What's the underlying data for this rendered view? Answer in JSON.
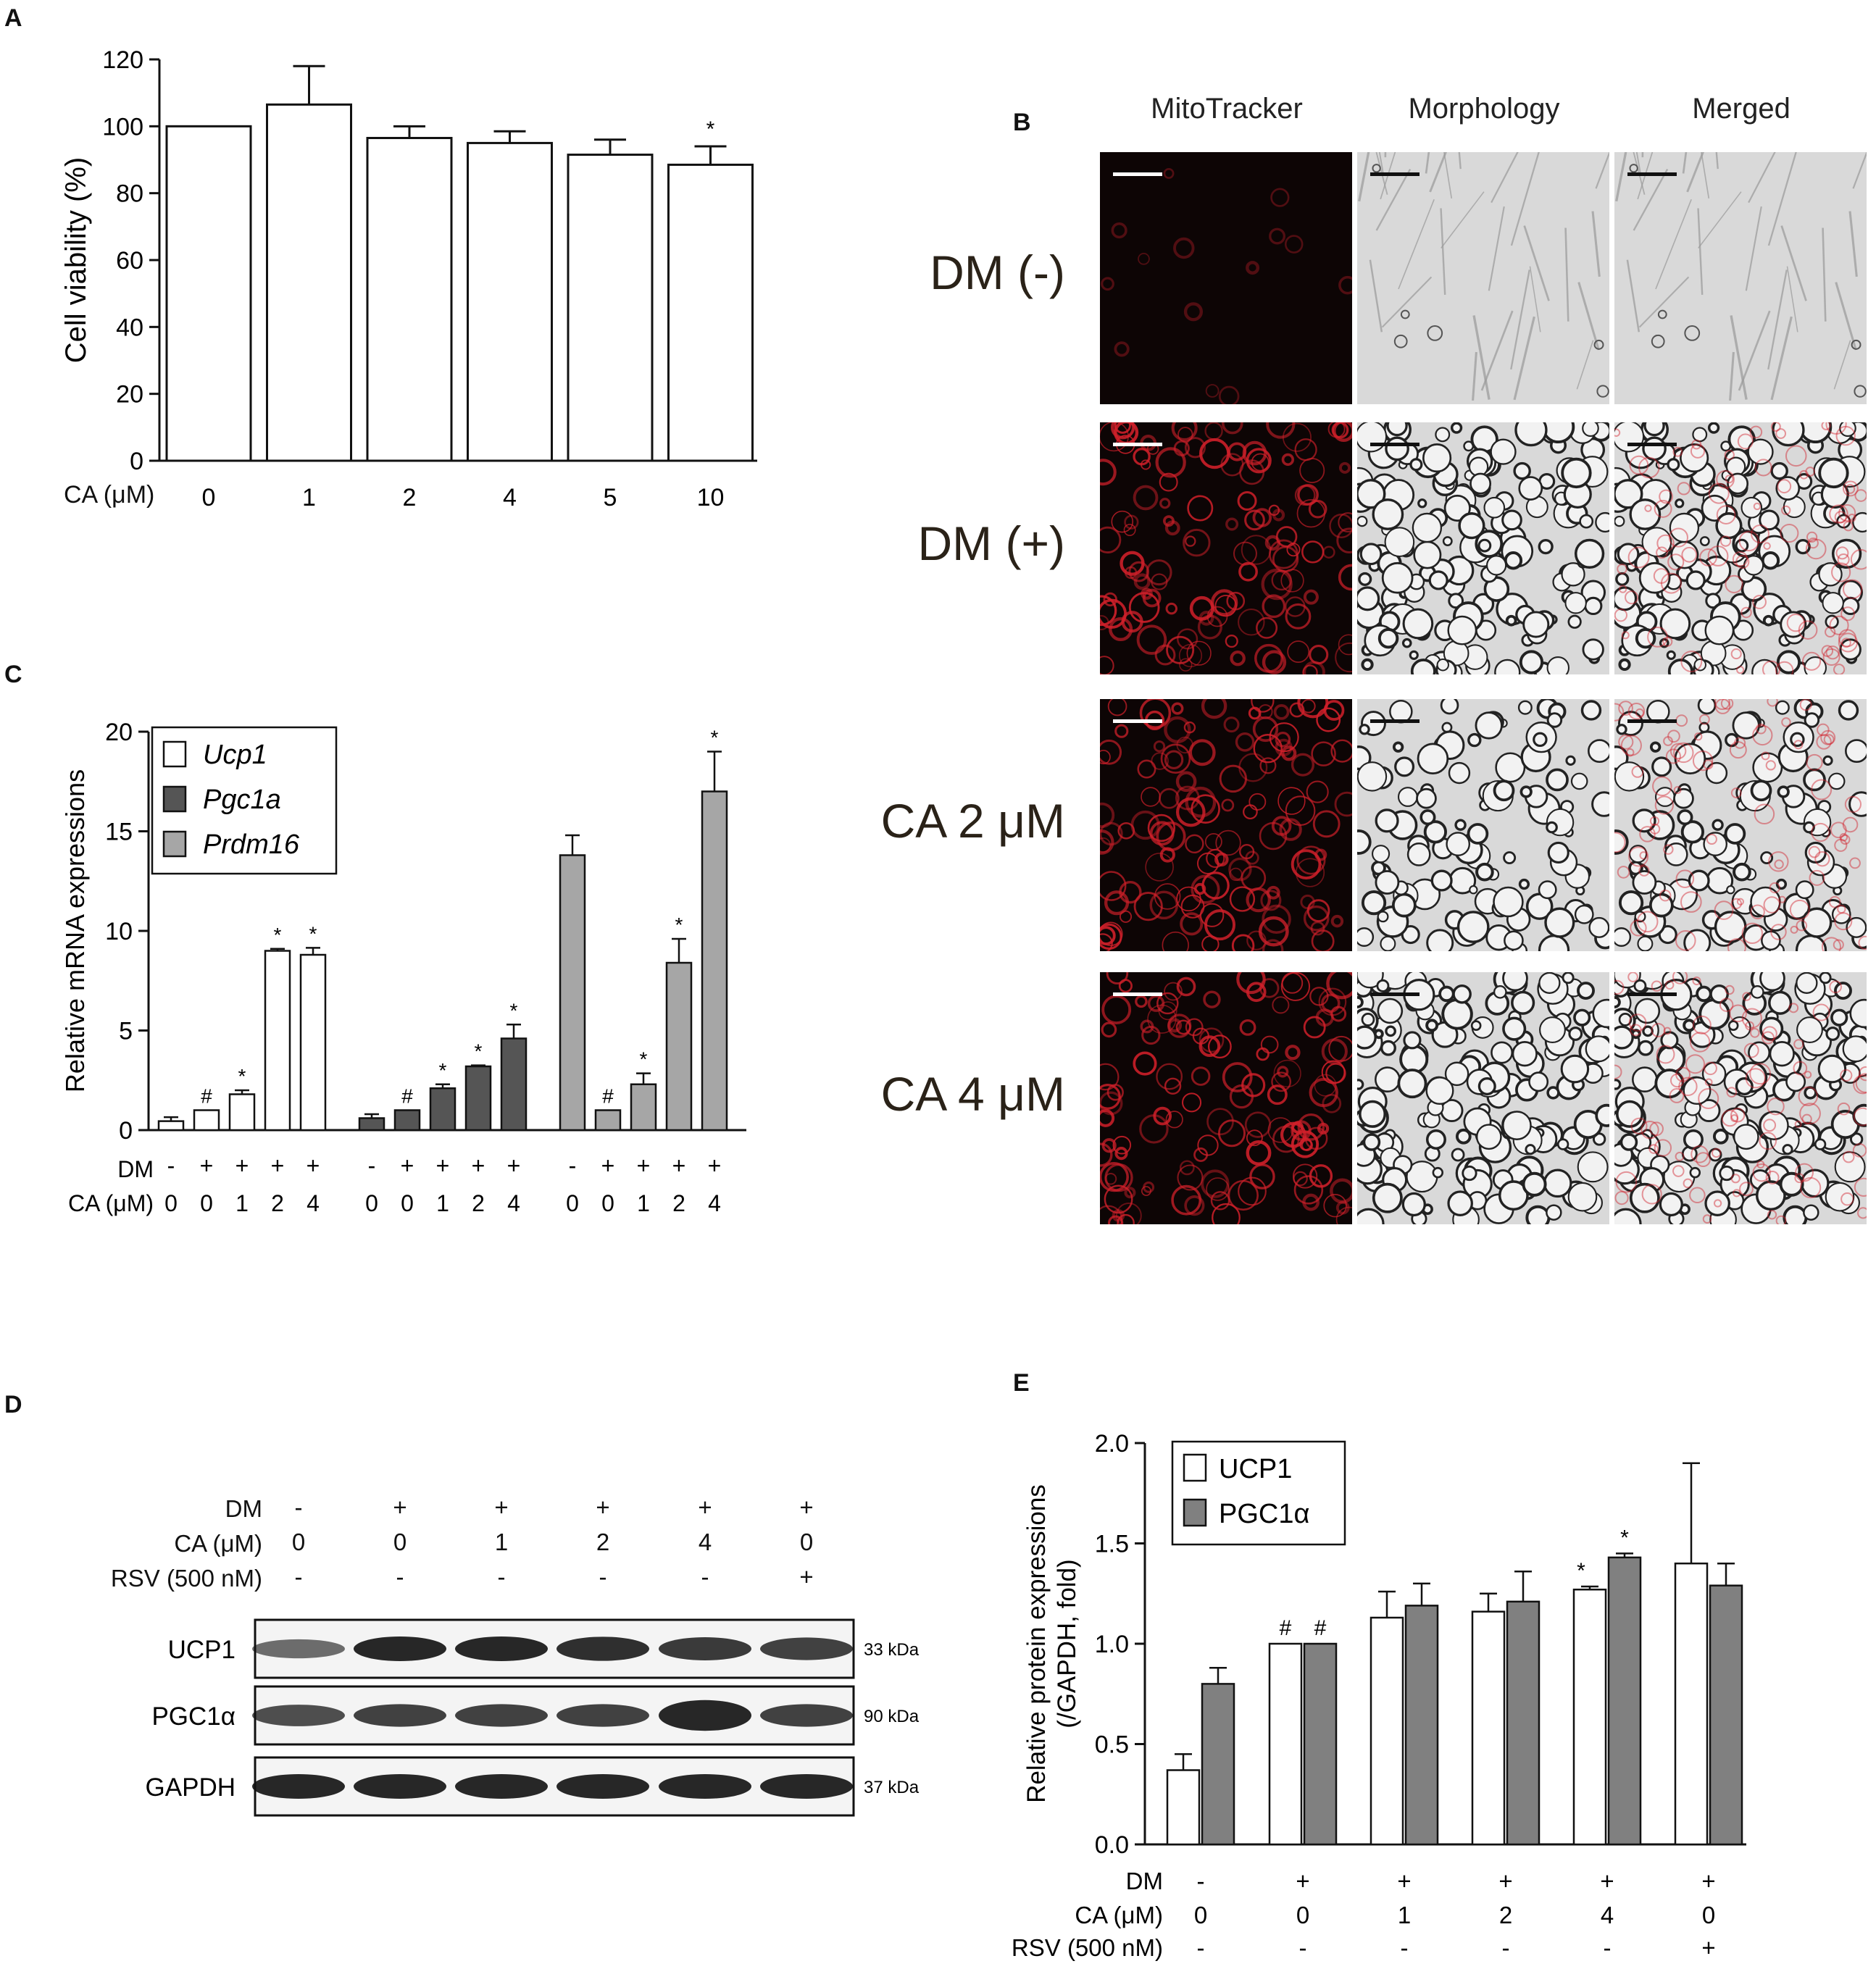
{
  "panels": {
    "A": {
      "letter": "A",
      "xlabel": "CA (μM)",
      "stars": [
        "",
        "",
        "",
        "",
        "",
        "*"
      ]
    },
    "B": {
      "letter": "B",
      "col_headers": [
        "MitoTracker",
        "Morphology",
        "Merged"
      ],
      "row_labels": [
        "DM (-)",
        "DM (+)",
        "CA 2 μM",
        "CA 4 μM"
      ]
    },
    "C": {
      "letter": "C",
      "row_labels": [
        "DM",
        "CA (μM)"
      ],
      "dm": [
        "-",
        "+",
        "+",
        "+",
        "+"
      ],
      "ca": [
        "0",
        "0",
        "1",
        "2",
        "4"
      ],
      "marks": [
        "",
        "#",
        "*",
        "*",
        "*"
      ]
    },
    "D": {
      "letter": "D",
      "row_labels": [
        "DM",
        "CA (μM)",
        "RSV (500 nM)"
      ],
      "dm": [
        "-",
        "+",
        "+",
        "+",
        "+",
        "+"
      ],
      "ca": [
        "0",
        "0",
        "1",
        "2",
        "4",
        "0"
      ],
      "rsv": [
        "-",
        "-",
        "-",
        "-",
        "-",
        "+"
      ],
      "blots": [
        {
          "name": "UCP1",
          "size": "33 kDa"
        },
        {
          "name": "PGC1α",
          "size": "90 kDa"
        },
        {
          "name": "GAPDH",
          "size": "37 kDa"
        }
      ]
    },
    "E": {
      "letter": "E",
      "row_labels": [
        "DM",
        "CA (μM)",
        "RSV (500 nM)"
      ],
      "dm": [
        "-",
        "+",
        "+",
        "+",
        "+",
        "+"
      ],
      "ca": [
        "0",
        "0",
        "1",
        "2",
        "4",
        "0"
      ],
      "rsv": [
        "-",
        "-",
        "-",
        "-",
        "-",
        "+"
      ],
      "marks_ucp1": [
        "",
        "#",
        "",
        "",
        "*",
        ""
      ],
      "marks_pgc": [
        "",
        "#",
        "",
        "",
        "*",
        ""
      ]
    }
  },
  "colors": {
    "bar_white": "#ffffff",
    "bar_dark": "#555555",
    "bar_gray": "#a6a6a6",
    "bar_mid": "#808080",
    "axis": "#111111",
    "mito_red": "#d0202a",
    "micro_black": "#0d0505"
  },
  "chart_data": [
    {
      "id": "A",
      "type": "bar",
      "title": "",
      "ylabel": "Cell viability (%)",
      "xlabel": "CA (μM)",
      "categories": [
        "0",
        "1",
        "2",
        "4",
        "5",
        "10"
      ],
      "values": [
        100,
        106.5,
        96.5,
        95,
        91.5,
        88.5
      ],
      "errors": [
        0,
        11.5,
        3.5,
        3.5,
        4.5,
        5.5
      ],
      "ylim": [
        0,
        120
      ],
      "yticks": [
        "0",
        "20",
        "40",
        "60",
        "80",
        "100",
        "120"
      ],
      "bar_color": "#ffffff"
    },
    {
      "id": "C",
      "type": "bar",
      "title": "",
      "ylabel": "Relative mRNA expressions",
      "ylim": [
        0,
        20
      ],
      "yticks": [
        "0",
        "5",
        "10",
        "15",
        "20"
      ],
      "legend_position": "top-left",
      "groups": [
        {
          "name": "Ucp1",
          "color": "#ffffff",
          "values": [
            0.45,
            1.0,
            1.8,
            9.0,
            8.8
          ],
          "errors": [
            0.2,
            0,
            0.2,
            0.1,
            0.35
          ]
        },
        {
          "name": "Pgc1a",
          "color": "#555555",
          "values": [
            0.6,
            1.0,
            2.1,
            3.2,
            4.6
          ],
          "errors": [
            0.2,
            0,
            0.2,
            0.05,
            0.7
          ]
        },
        {
          "name": "Prdm16",
          "color": "#a6a6a6",
          "values": [
            13.8,
            1.0,
            2.3,
            8.4,
            17.0
          ],
          "errors": [
            1.0,
            0,
            0.55,
            1.2,
            2.0
          ]
        }
      ]
    },
    {
      "id": "E",
      "type": "bar",
      "title": "",
      "ylabel": "Relative protein expressions",
      "ylabel2": "(/GAPDH, fold)",
      "ylim": [
        0,
        2
      ],
      "yticks": [
        "0.0",
        "0.5",
        "1.0",
        "1.5",
        "2.0"
      ],
      "legend_position": "top-left",
      "series": [
        {
          "name": "UCP1",
          "color": "#ffffff",
          "values": [
            0.37,
            1.0,
            1.13,
            1.16,
            1.27,
            1.4
          ],
          "errors": [
            0.08,
            0,
            0.13,
            0.09,
            0.015,
            0.5
          ]
        },
        {
          "name": "PGC1α",
          "color": "#808080",
          "values": [
            0.8,
            1.0,
            1.19,
            1.21,
            1.43,
            1.29
          ],
          "errors": [
            0.08,
            0,
            0.11,
            0.15,
            0.02,
            0.11
          ]
        }
      ]
    }
  ]
}
